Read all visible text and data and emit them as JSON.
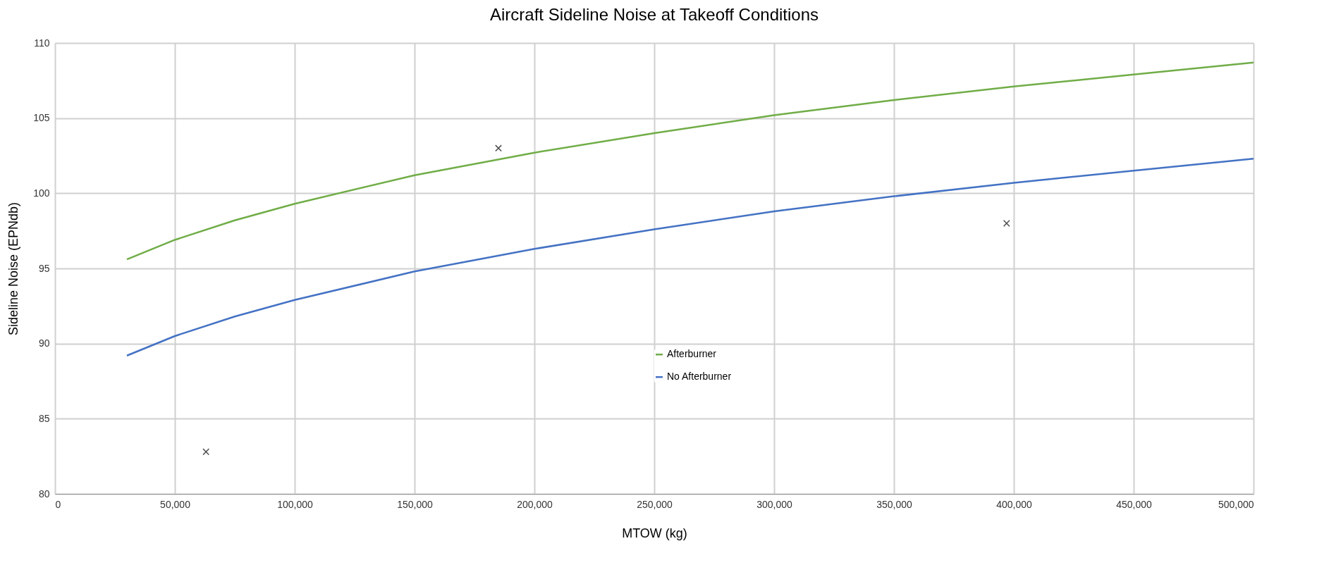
{
  "chart_data": {
    "type": "line",
    "title": "Aircraft Sideline Noise at Takeoff Conditions",
    "xlabel": "MTOW (kg)",
    "ylabel": "Sideline Noise (EPNdb)",
    "x": [
      30000,
      50000,
      75000,
      100000,
      150000,
      200000,
      250000,
      300000,
      350000,
      400000,
      450000,
      500000
    ],
    "series": [
      {
        "name": "Afterburner",
        "color": "#70ad47",
        "values": [
          95.6,
          96.9,
          98.2,
          99.3,
          101.2,
          102.7,
          104.0,
          105.2,
          106.2,
          107.1,
          107.9,
          108.7
        ]
      },
      {
        "name": "No Afterburner",
        "color": "#4472c4",
        "values": [
          89.2,
          90.5,
          91.8,
          92.9,
          94.8,
          96.3,
          97.6,
          98.8,
          99.8,
          100.7,
          101.5,
          102.3
        ]
      },
      {
        "type": "scatter",
        "color": "#000000",
        "marker": "cross",
        "x": [
          63000,
          185000,
          397000
        ],
        "values": [
          82.8,
          103.0,
          98.0
        ]
      }
    ],
    "xlim": [
      0,
      500000
    ],
    "xticks": [
      0,
      {
        "value": 50000,
        "label": "50,000"
      },
      {
        "value": 100000,
        "label": "100,000"
      },
      {
        "value": 150000,
        "label": "150,000"
      },
      {
        "value": 200000,
        "label": "200,000"
      },
      {
        "value": 250000,
        "label": "250,000"
      },
      {
        "value": 300000,
        "label": "300,000"
      },
      {
        "value": 350000,
        "label": "350,000"
      },
      {
        "value": 400000,
        "label": "400,000"
      },
      {
        "value": 450000,
        "label": "450,000"
      },
      {
        "value": 500000,
        "label": "500,000"
      }
    ],
    "ylim": [
      80,
      110
    ],
    "yticks": [
      80,
      85,
      90,
      95,
      100,
      105,
      110
    ],
    "grid": true,
    "legend": "bottom",
    "line_style": "solid"
  }
}
